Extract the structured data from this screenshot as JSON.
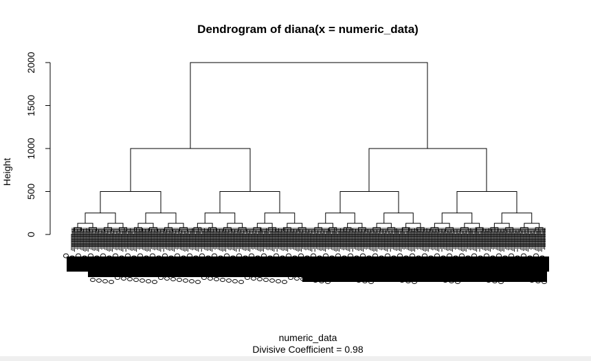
{
  "chart_data": {
    "type": "dendrogram",
    "title": "Dendrogram of  diana(x = numeric_data)",
    "xlabel": "numeric_data",
    "ylabel": "Height",
    "subtitle_prefix": "Divisive Coefficient = ",
    "divisive_coefficient": "0.98",
    "ylim": [
      0,
      2000
    ],
    "yticks": [
      0,
      500,
      1000,
      1500,
      2000
    ],
    "ytick_labels": [
      "0",
      "500",
      "1000",
      "1500",
      "2000"
    ],
    "merges": [
      {
        "name": "root",
        "height": 2000,
        "children": [
          "L",
          "R"
        ]
      },
      {
        "name": "L",
        "height": 1000,
        "children": [
          "LL",
          "LR"
        ]
      },
      {
        "name": "R",
        "height": 1000,
        "children": [
          "RL",
          "RR"
        ]
      },
      {
        "name": "LL",
        "height": 500
      },
      {
        "name": "LR",
        "height": 500
      },
      {
        "name": "RL",
        "height": 500
      },
      {
        "name": "RR",
        "height": 500
      }
    ],
    "level3_height": 250,
    "level4_height": 130,
    "leaf_height": 0
  }
}
